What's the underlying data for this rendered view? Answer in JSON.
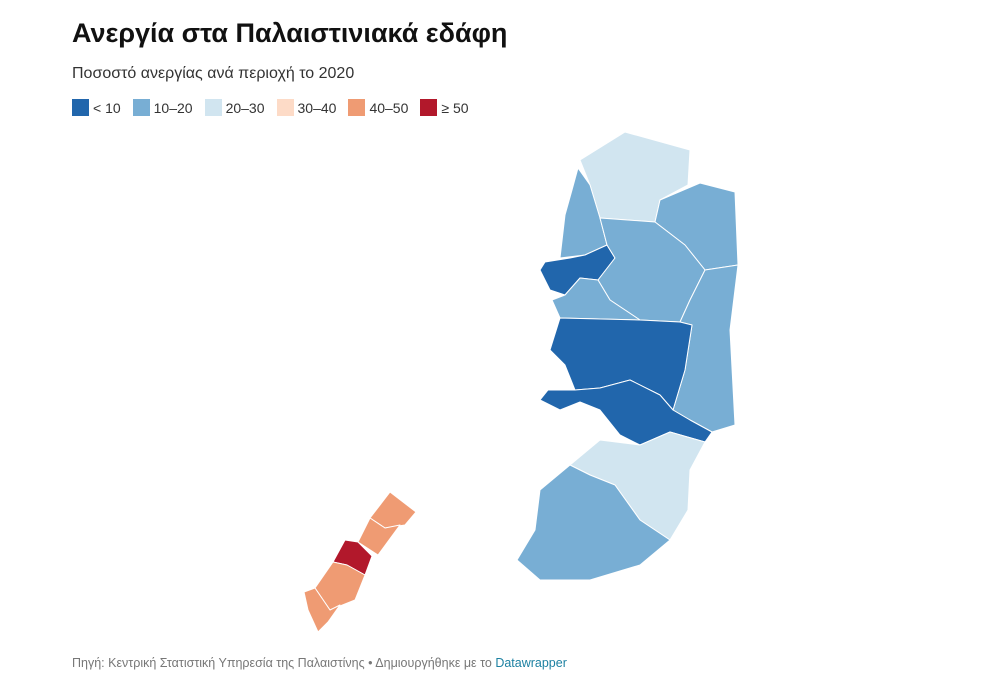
{
  "header": {
    "title": "Ανεργία στα Παλαιστινιακά εδάφη",
    "subtitle": "Ποσοστό ανεργίας ανά περιοχή το 2020"
  },
  "legend": [
    {
      "label": "< 10",
      "color": "#2166ac"
    },
    {
      "label": "10–20",
      "color": "#78aed4"
    },
    {
      "label": "20–30",
      "color": "#d1e5f0"
    },
    {
      "label": "30–40",
      "color": "#fddbc7"
    },
    {
      "label": "40–50",
      "color": "#ef9b73"
    },
    {
      "label": "≥ 50",
      "color": "#b2182b"
    }
  ],
  "footer": {
    "source": "Πηγή: Κεντρική Στατιστική Υπηρεσία της Παλαιστίνης • Δημιουργήθηκε με το",
    "link": "Datawrapper"
  }
}
